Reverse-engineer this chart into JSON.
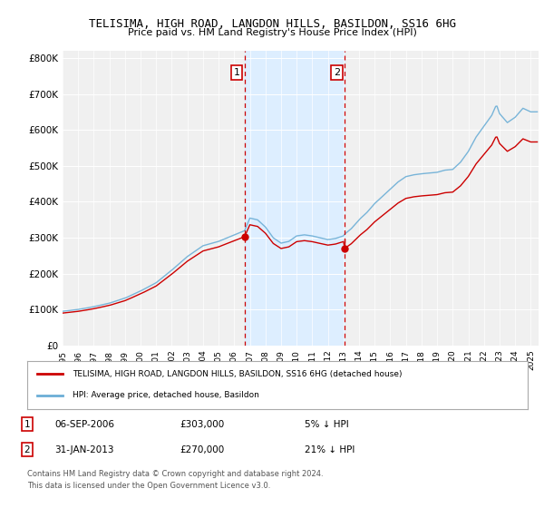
{
  "title": "TELISIMA, HIGH ROAD, LANGDON HILLS, BASILDON, SS16 6HG",
  "subtitle": "Price paid vs. HM Land Registry's House Price Index (HPI)",
  "ylabel_ticks": [
    "£0",
    "£100K",
    "£200K",
    "£300K",
    "£400K",
    "£500K",
    "£600K",
    "£700K",
    "£800K"
  ],
  "ytick_values": [
    0,
    100000,
    200000,
    300000,
    400000,
    500000,
    600000,
    700000,
    800000
  ],
  "ylim": [
    0,
    820000
  ],
  "xlim_start": 1995.0,
  "xlim_end": 2025.5,
  "hpi_color": "#6baed6",
  "price_color": "#cc0000",
  "shaded_region_color": "#ddeeff",
  "vline_color": "#cc0000",
  "marker1_date": 2006.67,
  "marker2_date": 2013.08,
  "marker1_price": 303000,
  "marker2_price": 270000,
  "legend_label_price": "TELISIMA, HIGH ROAD, LANGDON HILLS, BASILDON, SS16 6HG (detached house)",
  "legend_label_hpi": "HPI: Average price, detached house, Basildon",
  "annotation1_date": "06-SEP-2006",
  "annotation1_price": "£303,000",
  "annotation1_hpi": "5% ↓ HPI",
  "annotation2_date": "31-JAN-2013",
  "annotation2_price": "£270,000",
  "annotation2_hpi": "21% ↓ HPI",
  "footer": "Contains HM Land Registry data © Crown copyright and database right 2024.\nThis data is licensed under the Open Government Licence v3.0.",
  "background_color": "#ffffff",
  "plot_bg_color": "#f0f0f0",
  "xtick_years": [
    1995,
    1996,
    1997,
    1998,
    1999,
    2000,
    2001,
    2002,
    2003,
    2004,
    2005,
    2006,
    2007,
    2008,
    2009,
    2010,
    2011,
    2012,
    2013,
    2014,
    2015,
    2016,
    2017,
    2018,
    2019,
    2020,
    2021,
    2022,
    2023,
    2024,
    2025
  ]
}
